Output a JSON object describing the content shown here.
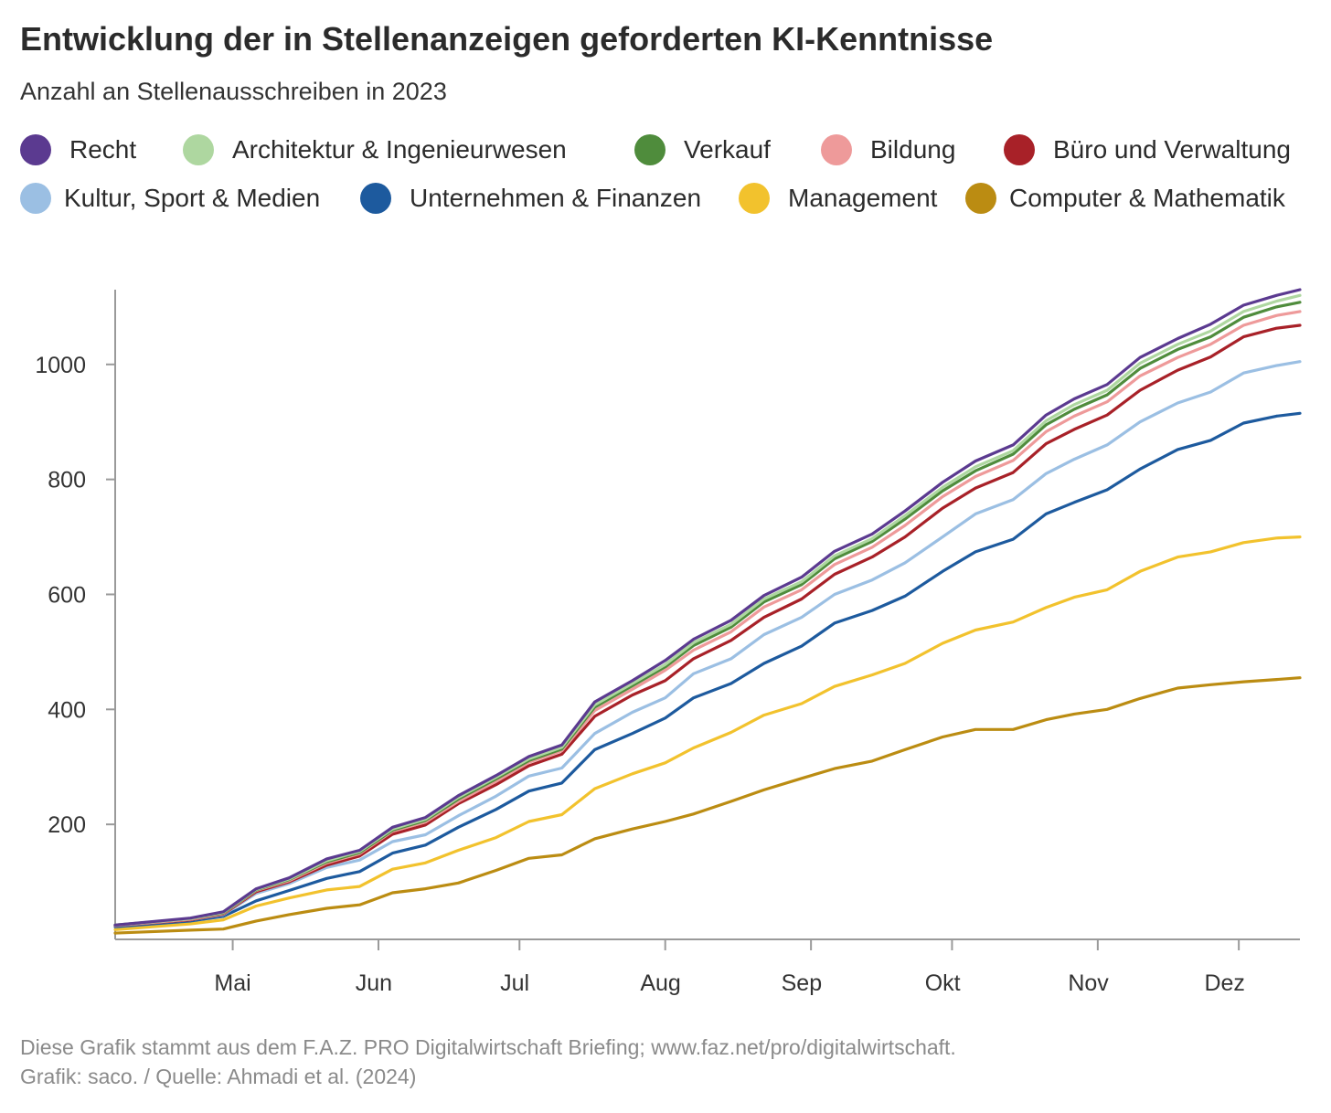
{
  "title": "Entwicklung der in Stellenanzeigen geforderten KI-Kenntnisse",
  "subtitle": "Anzahl an Stellenausschreiben in 2023",
  "footer": {
    "line1": "Diese Grafik stammt aus dem F.A.Z. PRO Digitalwirtschaft Briefing; www.faz.net/pro/digitalwirtschaft.",
    "line2": "Grafik: saco. / Quelle: Ahmadi et al. (2024)"
  },
  "chart_data": {
    "type": "line",
    "title": "Entwicklung der in Stellenanzeigen geforderten KI-Kenntnisse",
    "subtitle": "Anzahl an Stellenausschreiben in 2023",
    "xlabel": "",
    "ylabel": "",
    "x_tick_labels": [
      "Mai",
      "Jun",
      "Jul",
      "Aug",
      "Sep",
      "Okt",
      "Nov",
      "Dez"
    ],
    "y_ticks": [
      200,
      400,
      600,
      800,
      1000
    ],
    "ylim": [
      0,
      1130
    ],
    "xlim": [
      "2023-04-06",
      "2023-12-14"
    ],
    "grid": false,
    "legend_position": "top",
    "x": [
      "2023-04-06",
      "2023-04-22",
      "2023-04-29",
      "2023-05-06",
      "2023-05-13",
      "2023-05-21",
      "2023-05-28",
      "2023-06-04",
      "2023-06-11",
      "2023-06-18",
      "2023-06-26",
      "2023-07-03",
      "2023-07-10",
      "2023-07-17",
      "2023-07-25",
      "2023-08-01",
      "2023-08-07",
      "2023-08-15",
      "2023-08-22",
      "2023-08-30",
      "2023-09-06",
      "2023-09-14",
      "2023-09-21",
      "2023-09-29",
      "2023-10-06",
      "2023-10-14",
      "2023-10-21",
      "2023-10-27",
      "2023-11-03",
      "2023-11-10",
      "2023-11-18",
      "2023-11-25",
      "2023-12-02",
      "2023-12-09",
      "2023-12-14"
    ],
    "series": [
      {
        "name": "Recht",
        "color": "#5b3a90",
        "values": [
          25,
          37,
          48,
          88,
          107,
          140,
          155,
          195,
          212,
          250,
          285,
          318,
          338,
          413,
          450,
          485,
          522,
          555,
          598,
          630,
          675,
          705,
          745,
          795,
          832,
          860,
          912,
          940,
          965,
          1012,
          1045,
          1070,
          1103,
          1120,
          1130
        ]
      },
      {
        "name": "Architektur & Ingenieurwesen",
        "color": "#aed7a0",
        "values": [
          25,
          36,
          47,
          87,
          105,
          137,
          153,
          192,
          209,
          247,
          282,
          314,
          334,
          408,
          445,
          478,
          516,
          548,
          592,
          622,
          667,
          697,
          737,
          786,
          822,
          850,
          902,
          930,
          955,
          1002,
          1035,
          1058,
          1092,
          1110,
          1120
        ]
      },
      {
        "name": "Verkauf",
        "color": "#4f8c3c",
        "values": [
          25,
          36,
          46,
          86,
          104,
          135,
          151,
          190,
          207,
          244,
          279,
          311,
          331,
          404,
          441,
          474,
          511,
          543,
          587,
          617,
          662,
          692,
          731,
          780,
          815,
          844,
          895,
          922,
          947,
          993,
          1026,
          1048,
          1082,
          1100,
          1108
        ]
      },
      {
        "name": "Bildung",
        "color": "#ee9a9a",
        "values": [
          24,
          35,
          45,
          85,
          102,
          133,
          149,
          188,
          204,
          240,
          275,
          308,
          328,
          398,
          435,
          468,
          503,
          535,
          578,
          608,
          652,
          682,
          720,
          770,
          805,
          833,
          883,
          910,
          935,
          980,
          1012,
          1035,
          1068,
          1085,
          1092
        ]
      },
      {
        "name": "Büro und Verwaltung",
        "color": "#a82128",
        "values": [
          24,
          34,
          44,
          83,
          100,
          129,
          145,
          183,
          199,
          236,
          269,
          302,
          322,
          388,
          425,
          450,
          488,
          520,
          560,
          592,
          635,
          665,
          700,
          750,
          785,
          812,
          862,
          887,
          912,
          955,
          990,
          1013,
          1048,
          1063,
          1068
        ]
      },
      {
        "name": "Kultur, Sport & Medien",
        "color": "#9bbfe3",
        "values": [
          24,
          34,
          43,
          80,
          97,
          125,
          138,
          170,
          182,
          215,
          249,
          284,
          298,
          358,
          395,
          420,
          462,
          488,
          530,
          560,
          600,
          625,
          655,
          700,
          740,
          765,
          810,
          835,
          860,
          900,
          933,
          952,
          985,
          998,
          1005
        ]
      },
      {
        "name": "Unternehmen & Finanzen",
        "color": "#1d5a9e",
        "values": [
          22,
          32,
          40,
          67,
          85,
          106,
          118,
          150,
          164,
          195,
          226,
          258,
          272,
          330,
          358,
          385,
          420,
          445,
          480,
          510,
          550,
          572,
          597,
          640,
          674,
          696,
          740,
          760,
          782,
          818,
          852,
          868,
          898,
          910,
          915
        ]
      },
      {
        "name": "Management",
        "color": "#f2c22d",
        "values": [
          17,
          27,
          34,
          58,
          72,
          86,
          92,
          122,
          133,
          155,
          177,
          205,
          217,
          262,
          288,
          307,
          333,
          360,
          390,
          410,
          440,
          460,
          480,
          515,
          538,
          552,
          577,
          595,
          608,
          640,
          665,
          674,
          690,
          698,
          700
        ]
      },
      {
        "name": "Computer & Mathematik",
        "color": "#bb8c12",
        "values": [
          11,
          16,
          18,
          32,
          43,
          54,
          60,
          81,
          88,
          98,
          120,
          141,
          147,
          175,
          192,
          205,
          218,
          240,
          260,
          280,
          297,
          310,
          330,
          352,
          365,
          365,
          382,
          392,
          400,
          419,
          437,
          443,
          448,
          452,
          455
        ]
      }
    ]
  }
}
